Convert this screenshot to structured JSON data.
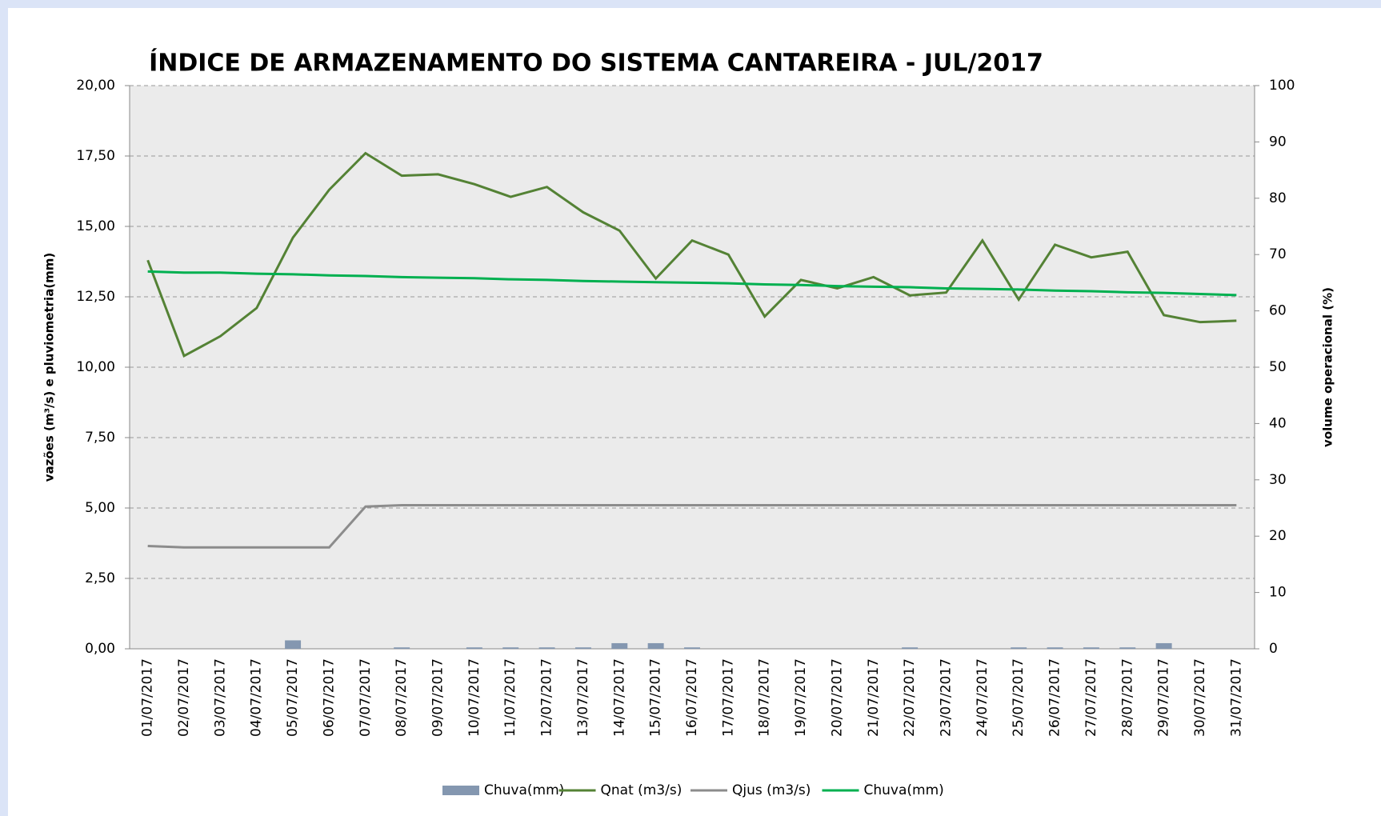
{
  "chart_data": {
    "type": "combo",
    "title": "ÍNDICE DE ARMAZENAMENTO  DO SISTEMA CANTAREIRA - JUL/2017",
    "y_label": "vazões (m³/s) e pluviometria(mm)",
    "y2_label": "volume operacional  (%)",
    "categories": [
      "01/07/2017",
      "02/07/2017",
      "03/07/2017",
      "04/07/2017",
      "05/07/2017",
      "06/07/2017",
      "07/07/2017",
      "08/07/2017",
      "09/07/2017",
      "10/07/2017",
      "11/07/2017",
      "12/07/2017",
      "13/07/2017",
      "14/07/2017",
      "15/07/2017",
      "16/07/2017",
      "17/07/2017",
      "18/07/2017",
      "19/07/2017",
      "20/07/2017",
      "21/07/2017",
      "22/07/2017",
      "23/07/2017",
      "24/07/2017",
      "25/07/2017",
      "26/07/2017",
      "27/07/2017",
      "28/07/2017",
      "29/07/2017",
      "30/07/2017",
      "31/07/2017"
    ],
    "series": [
      {
        "name": "Chuva(mm)",
        "type": "bar",
        "color": "#8497b0",
        "values": [
          0,
          0,
          0,
          0,
          0.3,
          0,
          0,
          0.05,
          0,
          0.05,
          0.05,
          0.05,
          0.05,
          0.2,
          0.2,
          0.05,
          0,
          0,
          0,
          0,
          0,
          0.05,
          0,
          0,
          0.05,
          0.05,
          0.05,
          0.05,
          0.2,
          0,
          0
        ]
      },
      {
        "name": "Qnat (m3/s)",
        "type": "line",
        "color": "#548235",
        "values": [
          13.8,
          10.4,
          11.1,
          12.1,
          14.6,
          16.3,
          17.6,
          16.8,
          16.85,
          16.5,
          16.05,
          16.4,
          15.5,
          14.85,
          13.15,
          14.5,
          14.0,
          11.8,
          13.1,
          12.8,
          13.2,
          12.55,
          12.65,
          14.5,
          12.4,
          14.35,
          13.9,
          14.1,
          11.85,
          11.6,
          11.65
        ]
      },
      {
        "name": "Qjus (m3/s)",
        "type": "line",
        "color": "#8c8c8c",
        "values": [
          3.65,
          3.6,
          3.6,
          3.6,
          3.6,
          3.6,
          5.05,
          5.1,
          5.1,
          5.1,
          5.1,
          5.1,
          5.1,
          5.1,
          5.1,
          5.1,
          5.1,
          5.1,
          5.1,
          5.1,
          5.1,
          5.1,
          5.1,
          5.1,
          5.1,
          5.1,
          5.1,
          5.1,
          5.1,
          5.1,
          5.1
        ]
      },
      {
        "name": "Chuva(mm)",
        "type": "line",
        "axis": "y2",
        "color": "#00b050",
        "values": [
          67,
          66.8,
          66.8,
          66.6,
          66.5,
          66.3,
          66.2,
          66.0,
          65.9,
          65.8,
          65.6,
          65.5,
          65.3,
          65.2,
          65.1,
          65.0,
          64.9,
          64.7,
          64.6,
          64.4,
          64.3,
          64.2,
          64.0,
          63.9,
          63.8,
          63.6,
          63.5,
          63.3,
          63.2,
          63.0,
          62.8
        ]
      }
    ],
    "ylim": [
      0,
      20
    ],
    "yticks": [
      {
        "value": 0,
        "label": "0,00"
      },
      {
        "value": 2.5,
        "label": "2,50"
      },
      {
        "value": 5,
        "label": "5,00"
      },
      {
        "value": 7.5,
        "label": "7,50"
      },
      {
        "value": 10,
        "label": "10,00"
      },
      {
        "value": 12.5,
        "label": "12,50"
      },
      {
        "value": 15,
        "label": "15,00"
      },
      {
        "value": 17.5,
        "label": "17,50"
      },
      {
        "value": 20,
        "label": "20,00"
      }
    ],
    "y2lim": [
      0,
      100
    ],
    "y2ticks": [
      0,
      10,
      20,
      30,
      40,
      50,
      60,
      70,
      80,
      90,
      100
    ],
    "grid": true,
    "legend": "bottom"
  }
}
